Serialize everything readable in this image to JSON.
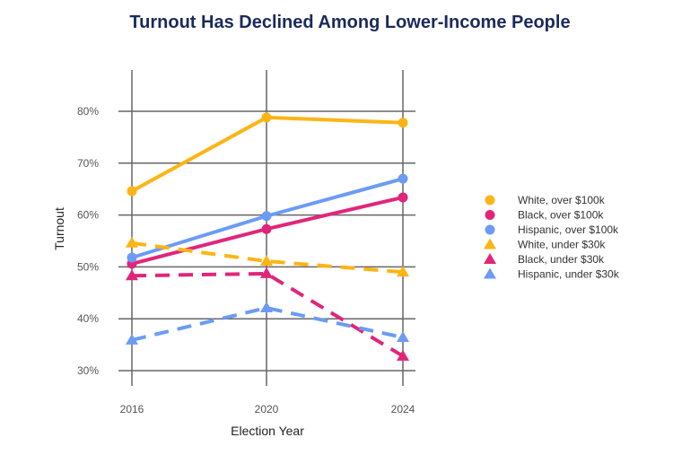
{
  "chart_data": {
    "type": "line",
    "title": "Turnout Has Declined Among Lower-Income People",
    "xlabel": "Election Year",
    "ylabel": "Turnout",
    "x": [
      "2016",
      "2020",
      "2024"
    ],
    "yticks": [
      "30%",
      "40%",
      "50%",
      "60%",
      "70%",
      "80%"
    ],
    "ylim": [
      28,
      87
    ],
    "grid": true,
    "legend_position": "right",
    "series": [
      {
        "name": "White, over $100k",
        "values": [
          64.6,
          78.8,
          77.8
        ],
        "color": "#FDB515",
        "marker": "circle",
        "dash": false
      },
      {
        "name": "Black, over $100k",
        "values": [
          50.6,
          57.3,
          63.4
        ],
        "color": "#E0267A",
        "marker": "circle",
        "dash": false
      },
      {
        "name": "Hispanic, over $100k",
        "values": [
          51.8,
          59.8,
          67.0
        ],
        "color": "#6B9BF5",
        "marker": "circle",
        "dash": false
      },
      {
        "name": "White, under $30k",
        "values": [
          54.6,
          51.1,
          49.0
        ],
        "color": "#FDB515",
        "marker": "triangle",
        "dash": true
      },
      {
        "name": "Black, under $30k",
        "values": [
          48.3,
          48.7,
          32.8
        ],
        "color": "#E0267A",
        "marker": "triangle",
        "dash": true
      },
      {
        "name": "Hispanic, under $30k",
        "values": [
          35.9,
          42.1,
          36.4
        ],
        "color": "#6B9BF5",
        "marker": "triangle",
        "dash": true
      }
    ]
  }
}
